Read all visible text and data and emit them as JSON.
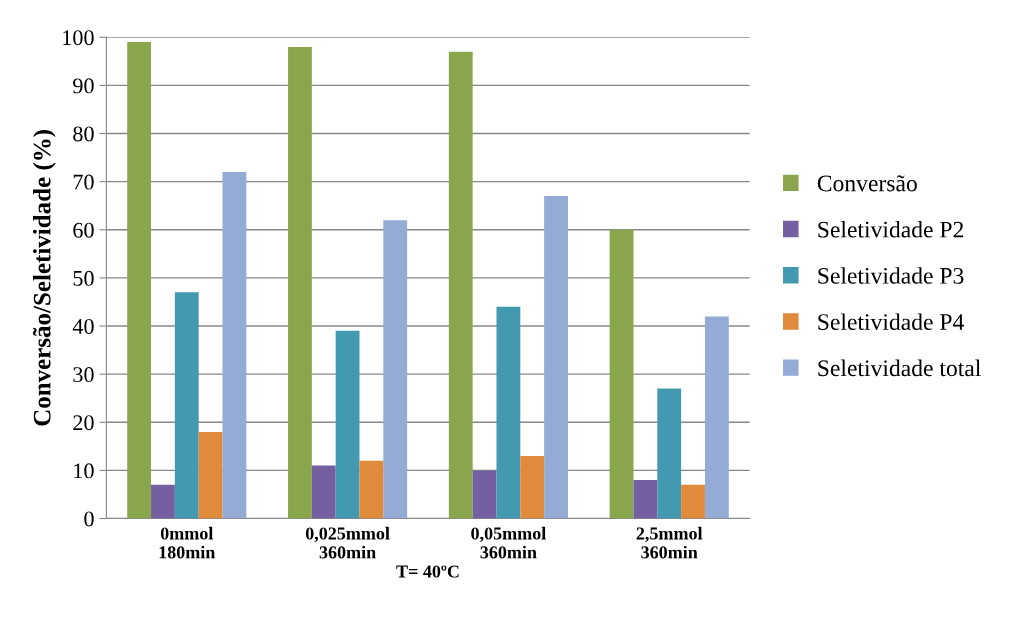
{
  "chart_data": {
    "type": "bar",
    "xlabel": "T= 40ºC",
    "ylabel": "Conversão/Seletividade (%)",
    "categories": [
      "0mmol\n180min",
      "0,025mmol\n360min",
      "0,05mmol\n360min",
      "2,5mmol\n360min"
    ],
    "series": [
      {
        "name": "Conversão",
        "color": "#8aa64c",
        "values": [
          99,
          98,
          97,
          60
        ]
      },
      {
        "name": "Seletividade P2",
        "color": "#7460a0",
        "values": [
          7,
          11,
          10,
          8
        ]
      },
      {
        "name": "Seletividade P3",
        "color": "#4399b0",
        "values": [
          47,
          39,
          44,
          27
        ]
      },
      {
        "name": "Seletividade P4",
        "color": "#e08a3c",
        "values": [
          18,
          12,
          13,
          7
        ]
      },
      {
        "name": "Seletividade total",
        "color": "#94abd6",
        "values": [
          72,
          62,
          67,
          42
        ]
      }
    ],
    "ylim": [
      0,
      100
    ],
    "yticks": [
      0,
      10,
      20,
      30,
      40,
      50,
      60,
      70,
      80,
      90,
      100
    ],
    "grid": "y",
    "legend": "right"
  }
}
